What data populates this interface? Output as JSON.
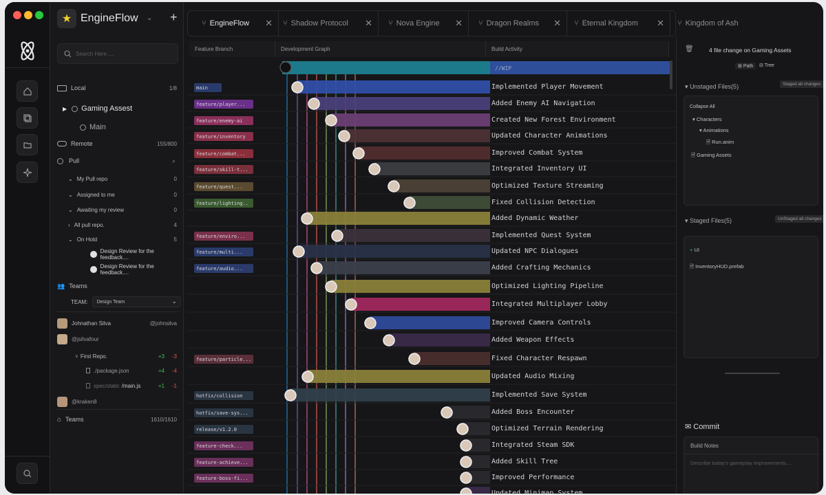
{
  "app": {
    "name": "EngineFlow"
  },
  "search": {
    "placeholder": "Search Here....."
  },
  "sidebar": {
    "local": {
      "label": "Local",
      "count": "1/8"
    },
    "gaming": {
      "label": "Gaming Assest"
    },
    "main": {
      "label": "Main"
    },
    "remote": {
      "label": "Remote",
      "count": "155/800"
    },
    "pull": {
      "label": "Pull"
    },
    "pull_items": [
      {
        "label": "My Pull repo",
        "count": "0"
      },
      {
        "label": "Assigned to me",
        "count": "0"
      },
      {
        "label": "Awaiting my review",
        "count": "0"
      },
      {
        "label": "All pull repo.",
        "count": "4"
      },
      {
        "label": "On Hold",
        "count": "5"
      }
    ],
    "reviews": [
      "Design Review for the feedback....",
      "Design Review for the feedback...."
    ],
    "teams_label": "Teams",
    "team_field": "TEAM:",
    "team_value": "Design Team",
    "members": [
      {
        "name": "Johnathan Silva",
        "handle": "@johnsilva"
      },
      {
        "name": "@jsilvafour",
        "handle": ""
      },
      {
        "name": "@kraken8",
        "handle": ""
      }
    ],
    "repo": {
      "label": "First Repo.",
      "add": "+3",
      "del": "-3"
    },
    "files": [
      {
        "name": "./package.json",
        "add": "+4",
        "del": "-4"
      },
      {
        "name": "spec/static",
        "name2": "/main.js",
        "add": "+1",
        "del": "-1"
      }
    ],
    "teams_footer": {
      "label": "Teams",
      "count": "1610/1610"
    }
  },
  "tabs": [
    {
      "label": "EngineFlow"
    },
    {
      "label": "Shadow Protocol"
    },
    {
      "label": "Nova Engine"
    },
    {
      "label": "Dragon Realms"
    },
    {
      "label": "Eternal Kingdom"
    },
    {
      "label": "Kingdom of Ash"
    }
  ],
  "columns": {
    "branch": "Feature Branch",
    "graph": "Development Graph",
    "activity": "Build Activity"
  },
  "wip": "//WIP",
  "branches": [
    "main",
    "feature/player...",
    "feature/enemy-ai",
    "feature/inventory",
    "feature/combat...",
    "feature/skill-t...",
    "feature/quest...",
    "feature/lighting..",
    "feature/enviro...",
    "feature/multi...",
    "feature/audio...",
    "feature/particle...",
    "hotfix/collision",
    "hotfix/save-sys...",
    "release/v1.2.0",
    "feature-check...",
    "feature-achieve...",
    "feature-boss-fi..."
  ],
  "commits": [
    "Implemented Player Movement",
    "Added Enemy AI Navigation",
    "Created New Forest Environment",
    "Updated Character Animations",
    "Improved Combat System",
    "Integrated Inventory UI",
    "Optimized Texture Streaming",
    "Fixed Collision Detection",
    "Added Dynamic Weather",
    "Implemented Quest System",
    "Updated NPC Dialogues",
    "Added Crafting Mechanics",
    "Optimized Lighting Pipeline",
    "Integrated Multiplayer Lobby",
    "Improved Camera Controls",
    "Added Weapon Effects",
    "Fixed Character Respawn",
    "Updated Audio Mixing",
    "Implemented Save System",
    "Added Boss Encounter",
    "Optimized Terrain Rendering",
    "Integrated Steam SDK",
    "Added Skill Tree",
    "Improved Performance",
    "Updated Minimap System"
  ],
  "right": {
    "header": "4 file change on Gaming Assets",
    "path": "Path",
    "tree": "Tree",
    "unstaged": "Unstaged Files(5)",
    "staged_all": "Staged all changes",
    "collapse": "Collapse All",
    "tree_items": [
      "Characters",
      "Animations",
      "Run.anim",
      "Gaming Assets"
    ],
    "staged": "Staged Files(5)",
    "unstaged_all": "UnStaged all changes",
    "staged_items": [
      "UI",
      "InventoryHUD.prefab"
    ],
    "commit": "Commit",
    "build_notes": "Build Notes",
    "notes_placeholder": "Describe today's gameplay improvements...."
  }
}
